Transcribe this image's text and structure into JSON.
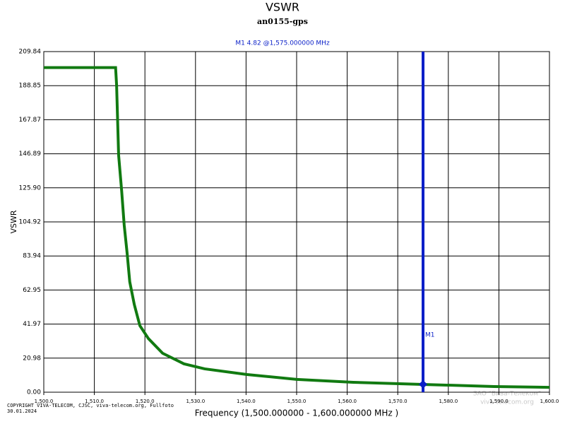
{
  "chart_data": {
    "type": "line",
    "title": "VSWR",
    "subtitle": "an0155-gps",
    "x_label": "Frequency (1,500.000000 - 1,600.000000 MHz )",
    "y_label": "VSWR",
    "xlim": [
      1500,
      1600
    ],
    "ylim": [
      0,
      209.84
    ],
    "xticks": [
      {
        "value": 1500,
        "label": "1,500.0"
      },
      {
        "value": 1510,
        "label": "1,510.0"
      },
      {
        "value": 1520,
        "label": "1,520.0"
      },
      {
        "value": 1530,
        "label": "1,530.0"
      },
      {
        "value": 1540,
        "label": "1,540.0"
      },
      {
        "value": 1550,
        "label": "1,550.0"
      },
      {
        "value": 1560,
        "label": "1,560.0"
      },
      {
        "value": 1570,
        "label": "1,570.0"
      },
      {
        "value": 1580,
        "label": "1,580.0"
      },
      {
        "value": 1590,
        "label": "1,590.0"
      },
      {
        "value": 1600,
        "label": "1,600.0"
      }
    ],
    "yticks": [
      {
        "value": 0,
        "label": "0.00"
      },
      {
        "value": 20.98,
        "label": "20.98"
      },
      {
        "value": 41.97,
        "label": "41.97"
      },
      {
        "value": 62.95,
        "label": "62.95"
      },
      {
        "value": 83.94,
        "label": "83.94"
      },
      {
        "value": 104.92,
        "label": "104.92"
      },
      {
        "value": 125.9,
        "label": "125.90"
      },
      {
        "value": 146.89,
        "label": "146.89"
      },
      {
        "value": 167.87,
        "label": "167.87"
      },
      {
        "value": 188.85,
        "label": "188.85"
      },
      {
        "value": 209.84,
        "label": "209.84"
      }
    ],
    "grid": true,
    "series": [
      {
        "color": "#117a11",
        "x": [
          1500,
          1514.2,
          1514.4,
          1514.8,
          1515.4,
          1515.9,
          1516.5,
          1517.0,
          1517.9,
          1519.0,
          1520.7,
          1523.5,
          1527.7,
          1531.8,
          1540.2,
          1550,
          1561.2,
          1574.9,
          1589.1,
          1600
        ],
        "values": [
          200,
          200,
          189,
          146,
          124,
          103,
          85,
          68,
          54,
          41,
          33,
          24,
          17.5,
          14.4,
          10.9,
          7.9,
          6.1,
          4.8,
          3.5,
          3.0
        ]
      }
    ],
    "marker": {
      "name": "M1",
      "x": 1575,
      "y": 4.82,
      "label": "M1 4.82 @1,575.000000 MHz",
      "color": "#0a1fc8"
    },
    "copyright": [
      "COPYRIGHT VIVA-TELECOM, CJSC, viva-telecom.org, Fullfoto",
      "30.01.2024"
    ],
    "watermark": [
      "ЗАО \"Вива-Телеком\"",
      "viva-telecom.org"
    ]
  }
}
